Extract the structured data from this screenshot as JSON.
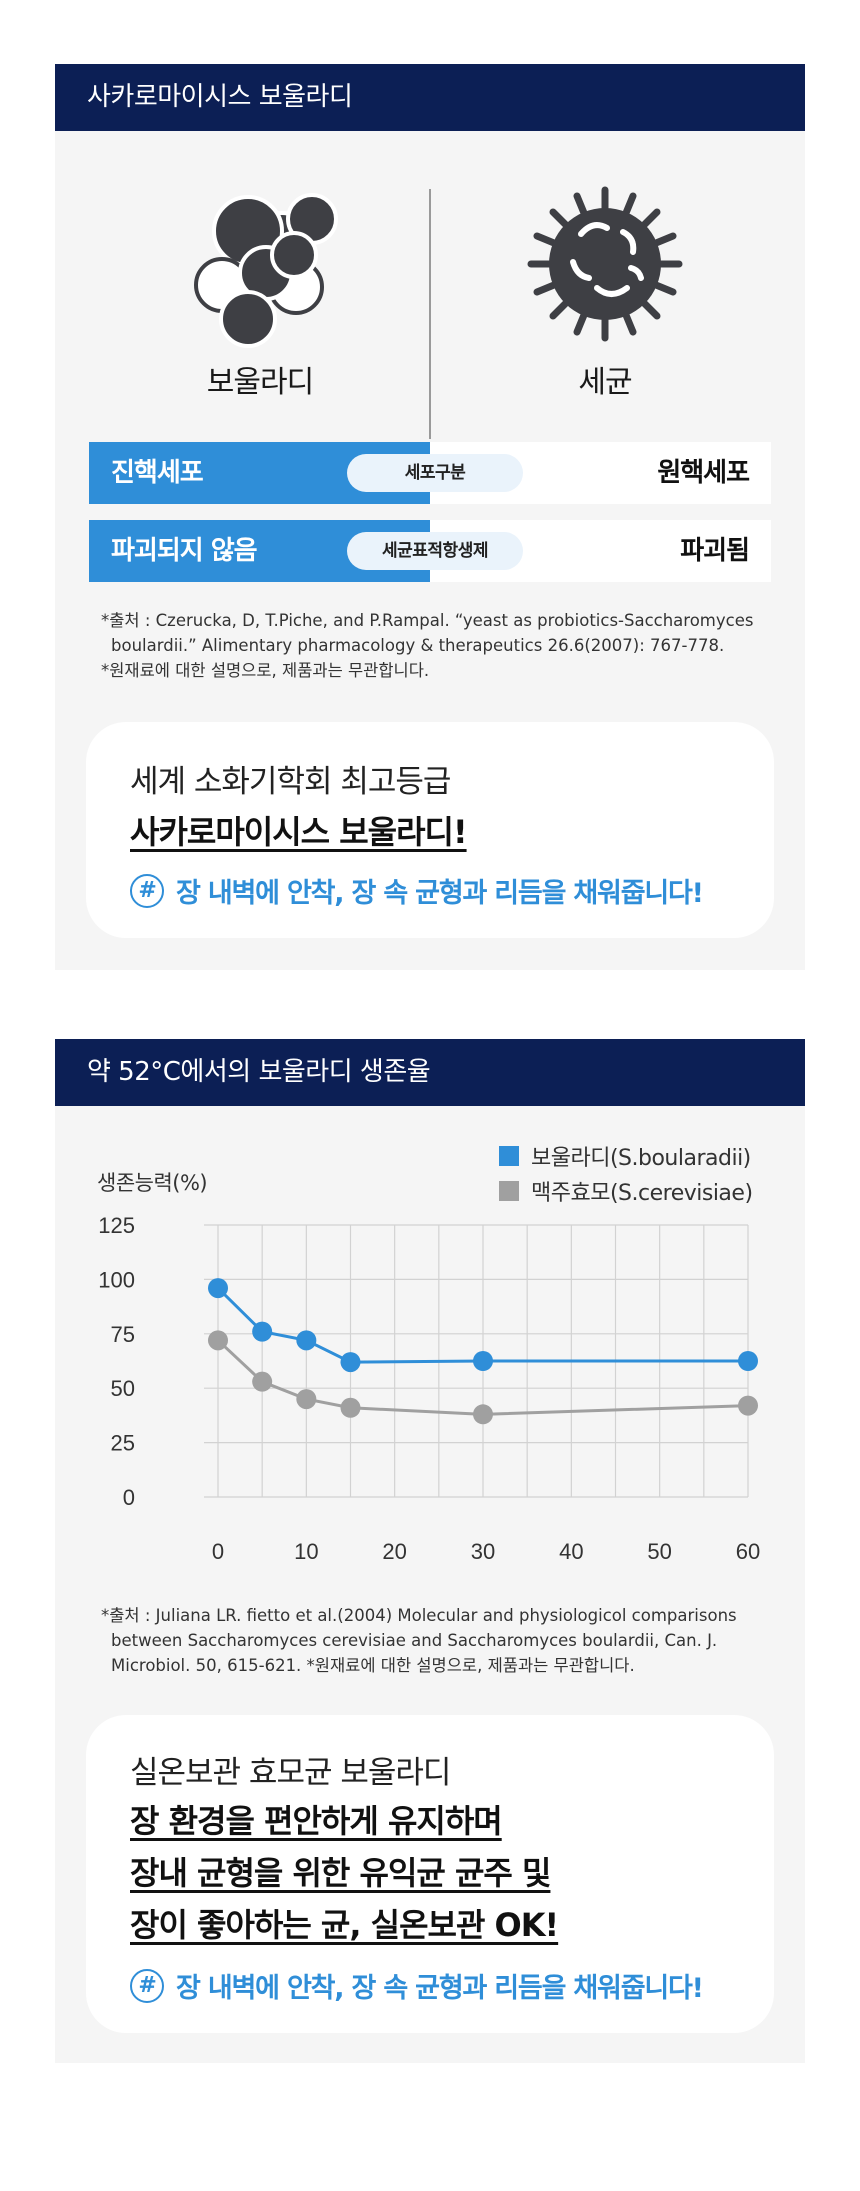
{
  "section1": {
    "title": "사카로마이시스 보울라디",
    "left_caption": "보울라디",
    "right_caption": "세균",
    "rows": [
      {
        "left": "진핵세포",
        "pill": "세포구분",
        "right": "원핵세포"
      },
      {
        "left": "파괴되지 않음",
        "pill": "세균표적항생제",
        "right": "파괴됨"
      }
    ],
    "notes": [
      "*출처 : Czerucka, D, T.Piche, and P.Rampal. “yeast as probiotics-Saccharomyces boulardii.” Alimentary pharmacology & therapeutics 26.6(2007): 767-778.",
      "*원재료에 대한 설명으로, 제품과는 무관합니다."
    ],
    "card": {
      "line1": "세계 소화기학회 최고등급",
      "line2": "사카로마이시스 보울라디!",
      "hash": "#",
      "tagline": "장 내벽에 안착, 장 속 균형과 리듬을 채워줍니다!"
    }
  },
  "section2": {
    "title": "약 52°C에서의 보울라디 생존율",
    "notes": [
      "*출처 : Juliana LR. fietto et al.(2004) Molecular and physiologicol comparisons between Saccharomyces cerevisiae and Saccharomyces boulardii, Can. J. Microbiol. 50, 615-621. *원재료에 대한 설명으로, 제품과는 무관합니다."
    ],
    "card": {
      "line1": "실온보관 효모균 보울라디",
      "line2": "장 환경을 편안하게 유지하며",
      "line3": "장내 균형을 위한 유익균 균주 및",
      "line4": "장이 좋아하는 균, 실온보관 OK!",
      "hash": "#",
      "tagline": "장 내벽에 안착, 장 속 균형과 리듬을 채워줍니다!"
    }
  },
  "chart_data": {
    "type": "line",
    "ylabel": "생존능력(%)",
    "xlabel": "",
    "x_ticks": [
      0,
      10,
      20,
      30,
      40,
      50,
      60
    ],
    "y_ticks": [
      0,
      25,
      50,
      75,
      100,
      125
    ],
    "xlim": [
      0,
      60
    ],
    "ylim": [
      0,
      125
    ],
    "grid": true,
    "legend_position": "top-right",
    "series": [
      {
        "name": "보울라디(S.boularadii)",
        "color": "#2f8ed8",
        "x": [
          0,
          5,
          10,
          15,
          30,
          60
        ],
        "y": [
          96,
          76,
          72,
          62,
          62.5,
          62.5
        ]
      },
      {
        "name": "맥주효모(S.cerevisiae)",
        "color": "#a0a0a0",
        "x": [
          0,
          5,
          10,
          15,
          30,
          60
        ],
        "y": [
          72,
          53,
          45,
          41,
          38,
          42
        ]
      }
    ]
  }
}
